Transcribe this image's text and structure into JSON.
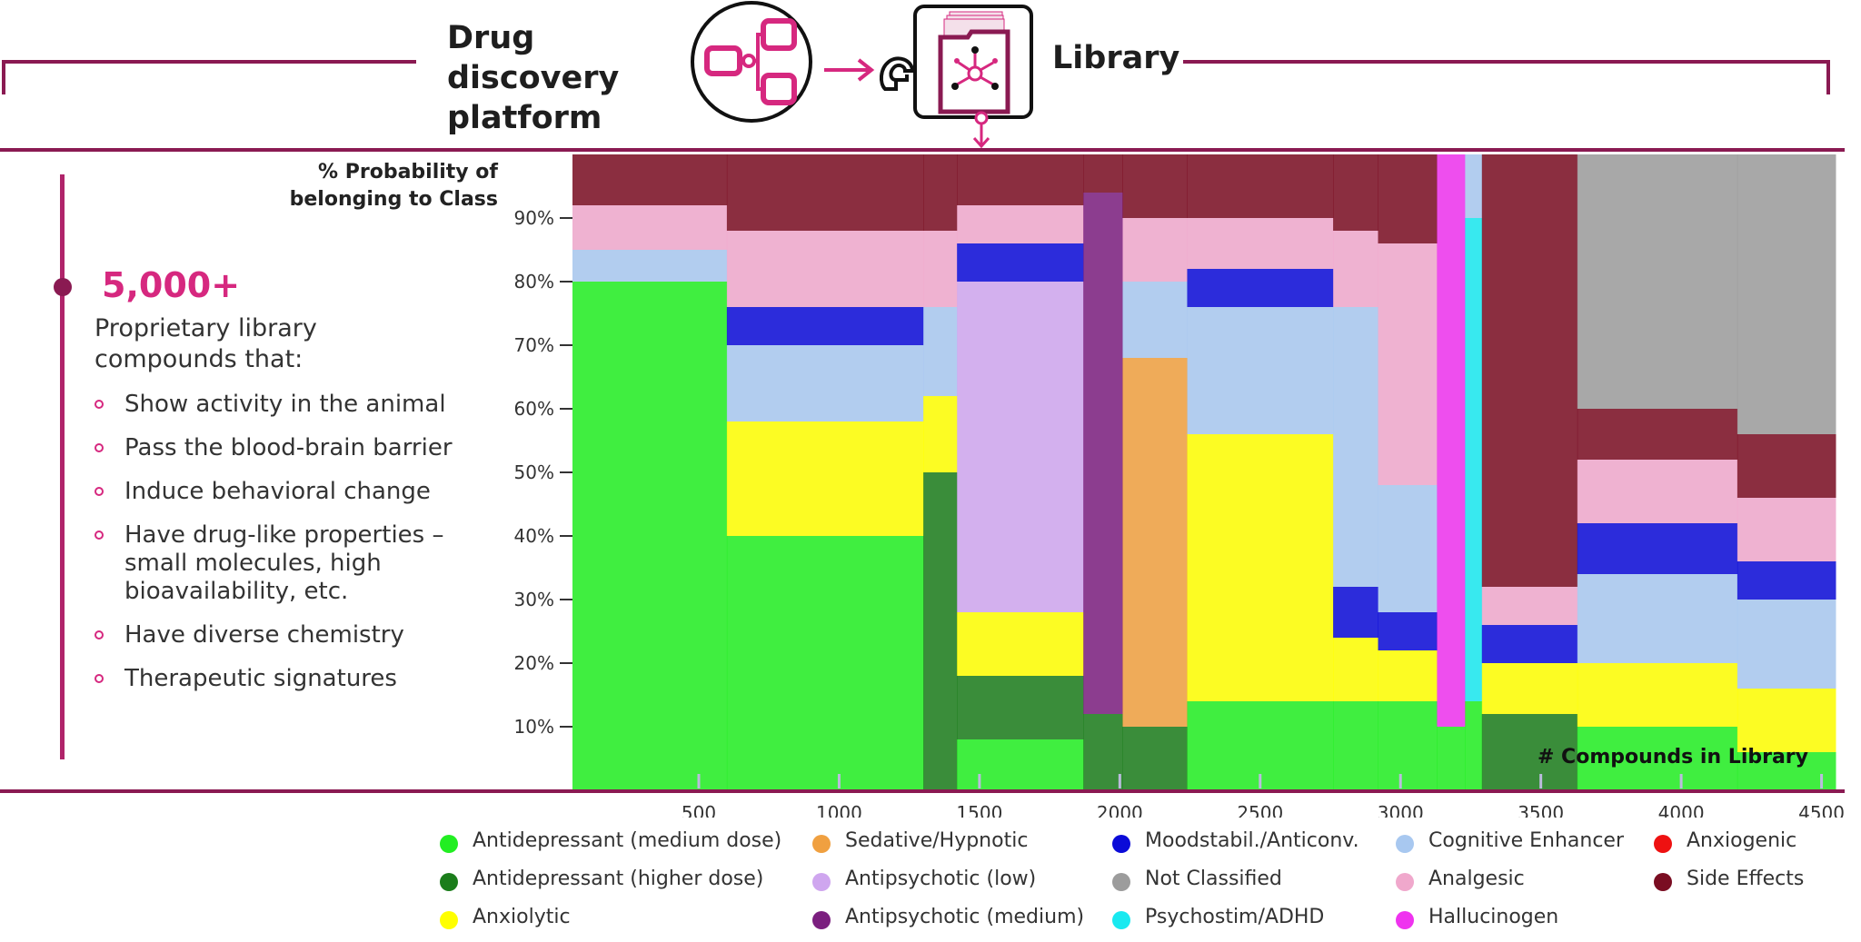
{
  "header": {
    "platform_title": "Drug discovery platform",
    "library_title": "Library"
  },
  "colors": {
    "brand": "#8a1a52",
    "accent": "#d6287f"
  },
  "icons": {
    "platform": "network-nodes-icon",
    "arrow": "right-arrow-icon",
    "library": "compound-library-icon",
    "brain": "brain-icon",
    "down_arrow": "down-arrow-icon"
  },
  "summary": {
    "stat": "5,000+",
    "caption": "Proprietary library compounds that:",
    "bullets": [
      "Show activity in the animal",
      "Pass the blood-brain barrier",
      "Induce behavioral change",
      "Have drug-like properties – small molecules, high bioavailability, etc.",
      "Have diverse chemistry",
      "Therapeutic signatures"
    ]
  },
  "chart_data": {
    "type": "area",
    "stacked": true,
    "ylabel": "% Probability of belonging to Class",
    "xlabel": "# Compounds in Library",
    "xlim": [
      50,
      4550
    ],
    "ylim": [
      0,
      100
    ],
    "x_ticks": [
      500,
      1000,
      1500,
      2000,
      2500,
      3000,
      3500,
      4000,
      4500
    ],
    "y_ticks": [
      10,
      20,
      30,
      40,
      50,
      60,
      70,
      80,
      90
    ],
    "y_tick_labels": [
      "10%",
      "20%",
      "30%",
      "40%",
      "50%",
      "60%",
      "70%",
      "80%",
      "90%"
    ],
    "series": [
      {
        "name": "Antidepressant (medium dose)",
        "color": "#22ee22"
      },
      {
        "name": "Antidepressant (higher dose)",
        "color": "#1b7d1b"
      },
      {
        "name": "Anxiolytic",
        "color": "#ffff00"
      },
      {
        "name": "Sedative/Hypnotic",
        "color": "#f0a040"
      },
      {
        "name": "Antipsychotic (low)",
        "color": "#cfa6ef"
      },
      {
        "name": "Antipsychotic (medium)",
        "color": "#7b1f7f"
      },
      {
        "name": "Moodstabil./Anticonv.",
        "color": "#0b0bd8"
      },
      {
        "name": "Not Classified",
        "color": "#9c9c9c"
      },
      {
        "name": "Psychostim/ADHD",
        "color": "#19e9f0"
      },
      {
        "name": "Cognitive Enhancer",
        "color": "#a8c8f0"
      },
      {
        "name": "Analgesic",
        "color": "#f0a8cc"
      },
      {
        "name": "Hallucinogen",
        "color": "#ef33ef"
      },
      {
        "name": "Anxiogenic",
        "color": "#ee1111"
      },
      {
        "name": "Side Effects",
        "color": "#7a0d22"
      }
    ],
    "segments": [
      {
        "x": [
          50,
          600
        ],
        "layers": [
          [
            "Antidepressant (medium dose)",
            80
          ],
          [
            "Cognitive Enhancer",
            5
          ],
          [
            "Analgesic",
            7
          ],
          [
            "Side Effects",
            8
          ]
        ]
      },
      {
        "x": [
          600,
          1300
        ],
        "layers": [
          [
            "Antidepressant (medium dose)",
            40
          ],
          [
            "Anxiolytic",
            18
          ],
          [
            "Cognitive Enhancer",
            12
          ],
          [
            "Moodstabil./Anticonv.",
            6
          ],
          [
            "Analgesic",
            12
          ],
          [
            "Side Effects",
            12
          ]
        ]
      },
      {
        "x": [
          1300,
          1420
        ],
        "layers": [
          [
            "Antidepressant (higher dose)",
            50
          ],
          [
            "Anxiolytic",
            12
          ],
          [
            "Cognitive Enhancer",
            14
          ],
          [
            "Analgesic",
            12
          ],
          [
            "Side Effects",
            12
          ]
        ]
      },
      {
        "x": [
          1420,
          1870
        ],
        "layers": [
          [
            "Antidepressant (medium dose)",
            8
          ],
          [
            "Antidepressant (higher dose)",
            10
          ],
          [
            "Anxiolytic",
            10
          ],
          [
            "Antipsychotic (low)",
            52
          ],
          [
            "Moodstabil./Anticonv.",
            6
          ],
          [
            "Analgesic",
            6
          ],
          [
            "Side Effects",
            8
          ]
        ]
      },
      {
        "x": [
          1870,
          2010
        ],
        "layers": [
          [
            "Antidepressant (higher dose)",
            12
          ],
          [
            "Antipsychotic (medium)",
            82
          ],
          [
            "Side Effects",
            6
          ]
        ]
      },
      {
        "x": [
          2010,
          2240
        ],
        "layers": [
          [
            "Antidepressant (higher dose)",
            10
          ],
          [
            "Sedative/Hypnotic",
            58
          ],
          [
            "Cognitive Enhancer",
            12
          ],
          [
            "Analgesic",
            10
          ],
          [
            "Side Effects",
            10
          ]
        ]
      },
      {
        "x": [
          2240,
          2760
        ],
        "layers": [
          [
            "Antidepressant (medium dose)",
            14
          ],
          [
            "Anxiolytic",
            42
          ],
          [
            "Cognitive Enhancer",
            20
          ],
          [
            "Moodstabil./Anticonv.",
            6
          ],
          [
            "Analgesic",
            8
          ],
          [
            "Side Effects",
            10
          ]
        ]
      },
      {
        "x": [
          2760,
          2920
        ],
        "layers": [
          [
            "Antidepressant (medium dose)",
            14
          ],
          [
            "Anxiolytic",
            10
          ],
          [
            "Moodstabil./Anticonv.",
            8
          ],
          [
            "Cognitive Enhancer",
            44
          ],
          [
            "Analgesic",
            12
          ],
          [
            "Side Effects",
            12
          ]
        ]
      },
      {
        "x": [
          2920,
          3130
        ],
        "layers": [
          [
            "Antidepressant (medium dose)",
            14
          ],
          [
            "Anxiolytic",
            8
          ],
          [
            "Moodstabil./Anticonv.",
            6
          ],
          [
            "Cognitive Enhancer",
            20
          ],
          [
            "Analgesic",
            38
          ],
          [
            "Side Effects",
            14
          ]
        ]
      },
      {
        "x": [
          3130,
          3230
        ],
        "layers": [
          [
            "Antidepressant (medium dose)",
            10
          ],
          [
            "Hallucinogen",
            90
          ]
        ]
      },
      {
        "x": [
          3230,
          3290
        ],
        "layers": [
          [
            "Antidepressant (medium dose)",
            14
          ],
          [
            "Psychostim/ADHD",
            76
          ],
          [
            "Cognitive Enhancer",
            10
          ]
        ]
      },
      {
        "x": [
          3290,
          3630
        ],
        "layers": [
          [
            "Antidepressant (higher dose)",
            12
          ],
          [
            "Anxiolytic",
            8
          ],
          [
            "Moodstabil./Anticonv.",
            6
          ],
          [
            "Analgesic",
            6
          ],
          [
            "Side Effects",
            68
          ]
        ]
      },
      {
        "x": [
          3630,
          4200
        ],
        "layers": [
          [
            "Antidepressant (medium dose)",
            10
          ],
          [
            "Anxiolytic",
            10
          ],
          [
            "Cognitive Enhancer",
            14
          ],
          [
            "Moodstabil./Anticonv.",
            8
          ],
          [
            "Analgesic",
            10
          ],
          [
            "Side Effects",
            8
          ],
          [
            "Not Classified",
            40
          ]
        ]
      },
      {
        "x": [
          4200,
          4550
        ],
        "layers": [
          [
            "Antidepressant (medium dose)",
            6
          ],
          [
            "Anxiolytic",
            10
          ],
          [
            "Cognitive Enhancer",
            14
          ],
          [
            "Moodstabil./Anticonv.",
            6
          ],
          [
            "Analgesic",
            10
          ],
          [
            "Side Effects",
            10
          ],
          [
            "Not Classified",
            44
          ]
        ]
      }
    ]
  }
}
